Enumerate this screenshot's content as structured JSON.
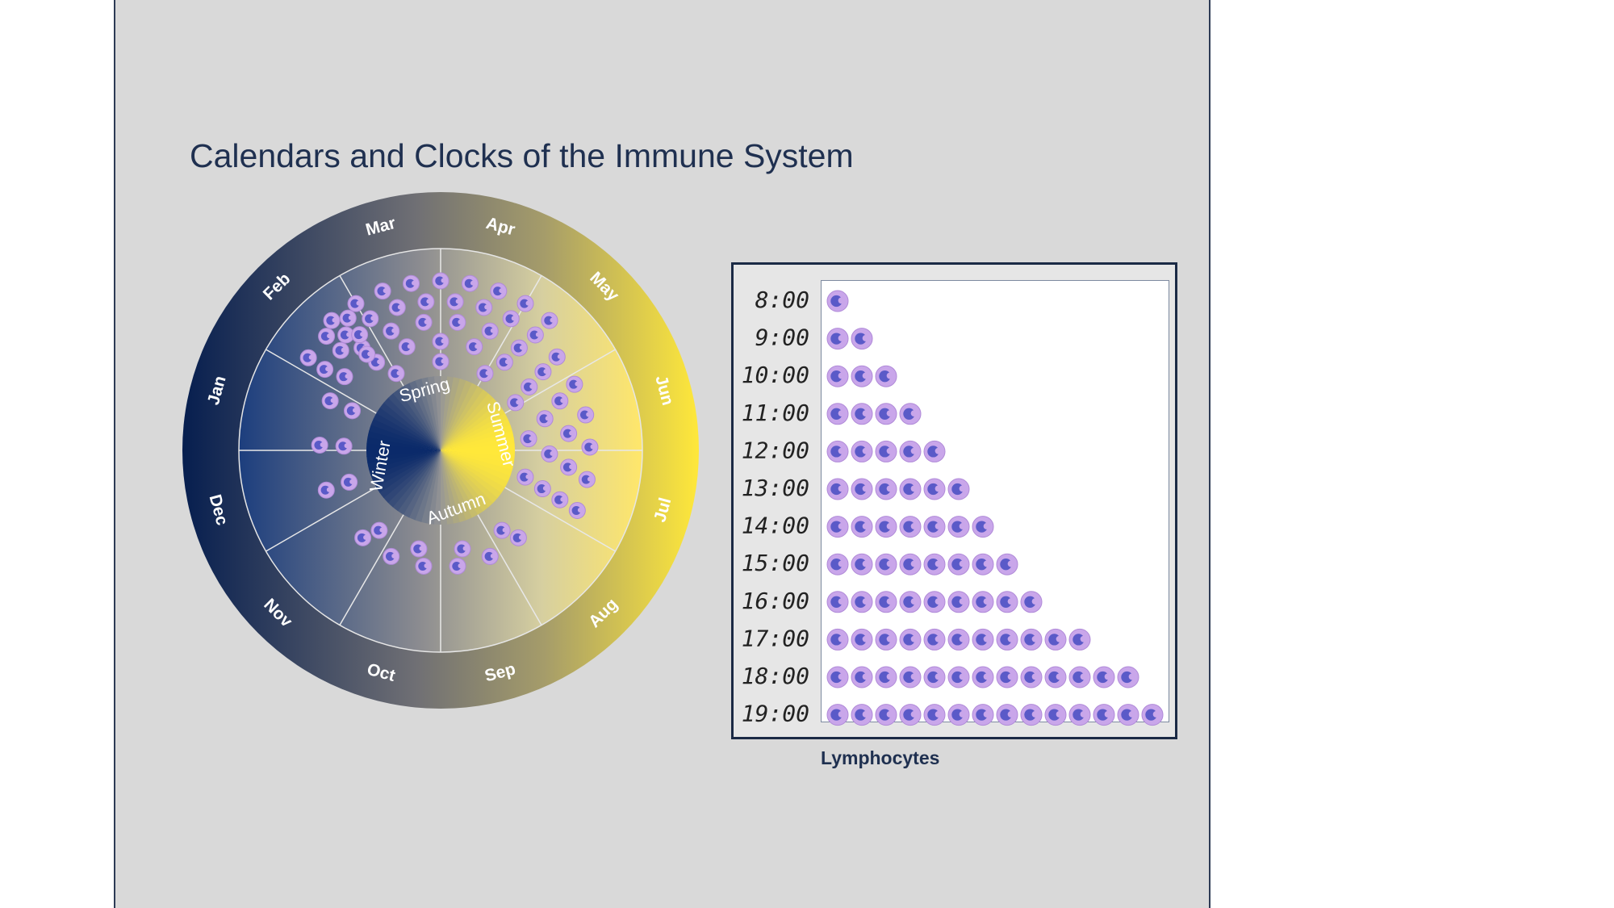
{
  "title": "Calendars and Clocks of the Immune System",
  "wheel": {
    "months": [
      "Jan",
      "Feb",
      "Mar",
      "Apr",
      "May",
      "Jun",
      "Jul",
      "Aug",
      "Sep",
      "Oct",
      "Nov",
      "Dec"
    ],
    "seasons": [
      "Spring",
      "Summer",
      "Autumn",
      "Winter"
    ],
    "colors": {
      "winter": "#0b2a6a",
      "summer": "#ffe83a",
      "neutral": "#8a8a8a"
    }
  },
  "clock": {
    "xlabel": "Lymphocytes",
    "times": [
      "8:00",
      "9:00",
      "10:00",
      "11:00",
      "12:00",
      "13:00",
      "14:00",
      "15:00",
      "16:00",
      "17:00",
      "18:00",
      "19:00"
    ],
    "counts": [
      1,
      2,
      3,
      4,
      5,
      6,
      7,
      8,
      9,
      11,
      13,
      14
    ]
  },
  "colors": {
    "cell_outer": "#c9a6ea",
    "cell_inner": "#5a5ac8",
    "frame": "#1b2a45"
  }
}
